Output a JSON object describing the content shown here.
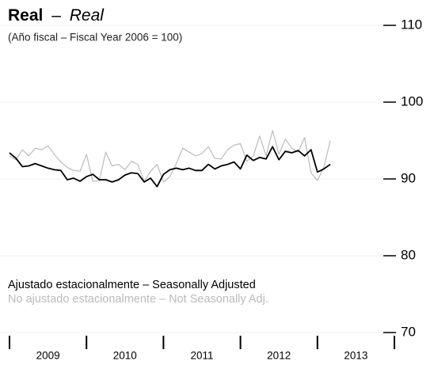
{
  "chart_data": {
    "type": "line",
    "title": "Real",
    "title_separator": "–",
    "title_english": "Real",
    "subtitle": "(Año fiscal – Fiscal Year 2006 = 100)",
    "x": [
      2009.0,
      2009.083,
      2009.167,
      2009.25,
      2009.333,
      2009.417,
      2009.5,
      2009.583,
      2009.667,
      2009.75,
      2009.833,
      2009.917,
      2010.0,
      2010.083,
      2010.167,
      2010.25,
      2010.333,
      2010.417,
      2010.5,
      2010.583,
      2010.667,
      2010.75,
      2010.833,
      2010.917,
      2011.0,
      2011.083,
      2011.167,
      2011.25,
      2011.333,
      2011.417,
      2011.5,
      2011.583,
      2011.667,
      2011.75,
      2011.833,
      2011.917,
      2012.0,
      2012.083,
      2012.167,
      2012.25,
      2012.333,
      2012.417,
      2012.5,
      2012.583,
      2012.667,
      2012.75,
      2012.833,
      2012.917,
      2013.0,
      2013.083,
      2013.167
    ],
    "series": [
      {
        "name": "Ajustado estacionalmente – Seasonally Adjusted",
        "color": "#000000",
        "width": 1.8,
        "values": [
          93.4,
          92.7,
          91.6,
          91.7,
          92.0,
          91.7,
          91.4,
          91.2,
          91.1,
          89.9,
          90.1,
          89.7,
          90.3,
          90.6,
          89.9,
          89.9,
          89.6,
          89.9,
          90.5,
          90.8,
          90.7,
          89.6,
          90.1,
          89.0,
          90.6,
          91.2,
          91.4,
          91.2,
          91.4,
          91.1,
          91.1,
          91.9,
          91.3,
          91.7,
          91.9,
          92.2,
          91.3,
          93.1,
          92.4,
          92.8,
          92.6,
          94.2,
          92.5,
          93.6,
          93.4,
          93.7,
          93.0,
          93.8,
          90.9,
          91.3,
          91.9
        ]
      },
      {
        "name": "No ajustado estacionalmente – Not Seasonally Adj.",
        "color": "#bbbbbb",
        "width": 1.2,
        "values": [
          93.0,
          92.5,
          93.8,
          93.0,
          94.0,
          93.8,
          94.3,
          93.2,
          92.2,
          91.5,
          91.1,
          91.0,
          93.2,
          89.7,
          89.8,
          93.5,
          91.7,
          91.9,
          91.2,
          92.3,
          91.9,
          89.7,
          91.0,
          91.9,
          89.6,
          90.3,
          92.0,
          94.0,
          93.5,
          93.0,
          93.3,
          94.2,
          92.7,
          92.6,
          93.8,
          94.4,
          94.6,
          92.3,
          93.0,
          95.6,
          93.0,
          96.3,
          93.2,
          95.2,
          94.0,
          93.5,
          95.4,
          90.8,
          89.8,
          91.5,
          95.0
        ]
      }
    ],
    "xlim": [
      2009,
      2014
    ],
    "xticks": [
      2009,
      2010,
      2011,
      2012,
      2013,
      2014
    ],
    "year_labels": [
      "2009",
      "2010",
      "2011",
      "2012",
      "2013"
    ],
    "ylim": [
      70,
      110
    ],
    "yticks": [
      70,
      80,
      90,
      100,
      110
    ],
    "grid": true
  }
}
